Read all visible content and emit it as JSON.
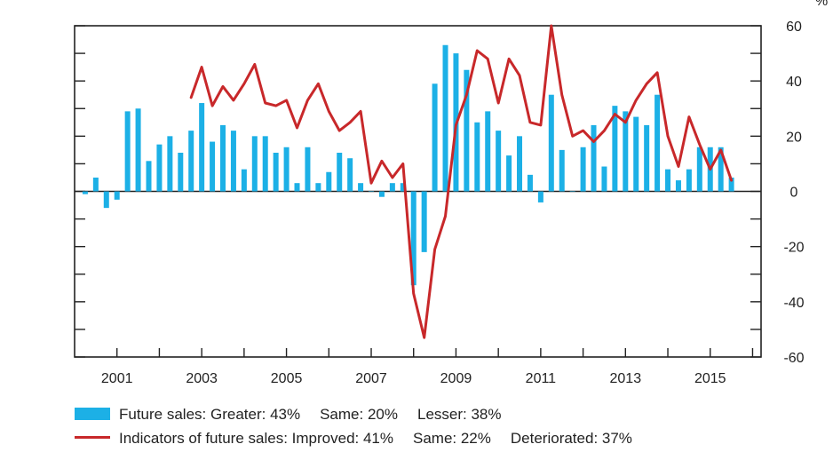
{
  "chart_data": {
    "type": "bar+line",
    "y_unit": "%",
    "ylim": [
      -60,
      60
    ],
    "y_ticks": [
      60,
      40,
      20,
      0,
      -20,
      -40,
      -60
    ],
    "x_tick_labels": [
      "2001",
      "2003",
      "2005",
      "2007",
      "2009",
      "2011",
      "2013",
      "2015"
    ],
    "x_tick_years": [
      2001,
      2003,
      2005,
      2007,
      2009,
      2011,
      2013,
      2015
    ],
    "x_range": [
      2000.0,
      2016.2
    ],
    "series": [
      {
        "name": "Future sales",
        "kind": "bar",
        "color": "#1cb0e6",
        "x": [
          2000.25,
          2000.5,
          2000.75,
          2001.0,
          2001.25,
          2001.5,
          2001.75,
          2002.0,
          2002.25,
          2002.5,
          2002.75,
          2003.0,
          2003.25,
          2003.5,
          2003.75,
          2004.0,
          2004.25,
          2004.5,
          2004.75,
          2005.0,
          2005.25,
          2005.5,
          2005.75,
          2006.0,
          2006.25,
          2006.5,
          2006.75,
          2007.0,
          2007.25,
          2007.5,
          2007.75,
          2008.0,
          2008.25,
          2008.5,
          2008.75,
          2009.0,
          2009.25,
          2009.5,
          2009.75,
          2010.0,
          2010.25,
          2010.5,
          2010.75,
          2011.0,
          2011.25,
          2011.5,
          2011.75,
          2012.0,
          2012.25,
          2012.5,
          2012.75,
          2013.0,
          2013.25,
          2013.5,
          2013.75,
          2014.0,
          2014.25,
          2014.5,
          2014.75,
          2015.0,
          2015.25,
          2015.5,
          2015.75
        ],
        "values": [
          -1,
          5,
          -6,
          -3,
          29,
          30,
          11,
          17,
          20,
          14,
          22,
          32,
          18,
          24,
          22,
          8,
          20,
          20,
          14,
          16,
          3,
          16,
          3,
          7,
          14,
          12,
          3,
          0,
          -2,
          3,
          3,
          -34,
          -22,
          39,
          53,
          50,
          44,
          25,
          29,
          22,
          13,
          20,
          6,
          -4,
          35,
          15,
          0,
          16,
          24,
          9,
          31,
          29,
          27,
          24,
          35,
          8,
          4,
          8,
          16,
          16,
          16,
          5,
          null
        ]
      },
      {
        "name": "Indicators of future sales",
        "kind": "line",
        "color": "#c8282a",
        "x": [
          2002.75,
          2003.0,
          2003.25,
          2003.5,
          2003.75,
          2004.0,
          2004.25,
          2004.5,
          2004.75,
          2005.0,
          2005.25,
          2005.5,
          2005.75,
          2006.0,
          2006.25,
          2006.5,
          2006.75,
          2007.0,
          2007.25,
          2007.5,
          2007.75,
          2008.0,
          2008.25,
          2008.5,
          2008.75,
          2009.0,
          2009.25,
          2009.5,
          2009.75,
          2010.0,
          2010.25,
          2010.5,
          2010.75,
          2011.0,
          2011.25,
          2011.5,
          2011.75,
          2012.0,
          2012.25,
          2012.5,
          2012.75,
          2013.0,
          2013.25,
          2013.5,
          2013.75,
          2014.0,
          2014.25,
          2014.5,
          2014.75,
          2015.0,
          2015.25,
          2015.5,
          2015.75
        ],
        "values": [
          34,
          45,
          31,
          38,
          33,
          39,
          46,
          32,
          31,
          33,
          23,
          33,
          39,
          29,
          22,
          25,
          29,
          3,
          11,
          5,
          10,
          -37,
          -53,
          -21,
          -9,
          24,
          35,
          51,
          48,
          32,
          48,
          42,
          25,
          24,
          60,
          35,
          20,
          22,
          18,
          22,
          28,
          25,
          33,
          39,
          43,
          20,
          9,
          27,
          17,
          8,
          15,
          4,
          null
        ]
      }
    ],
    "legend": [
      {
        "swatch": "bar",
        "label": "Future sales: Greater: 43%",
        "same": "Same: 20%",
        "other": "Lesser: 38%"
      },
      {
        "swatch": "line",
        "label": "Indicators of future sales: Improved: 41%",
        "same": "Same: 22%",
        "other": "Deteriorated: 37%"
      }
    ]
  },
  "colors": {
    "bar": "#1cb0e6",
    "line": "#c8282a",
    "axis": "#222222"
  }
}
